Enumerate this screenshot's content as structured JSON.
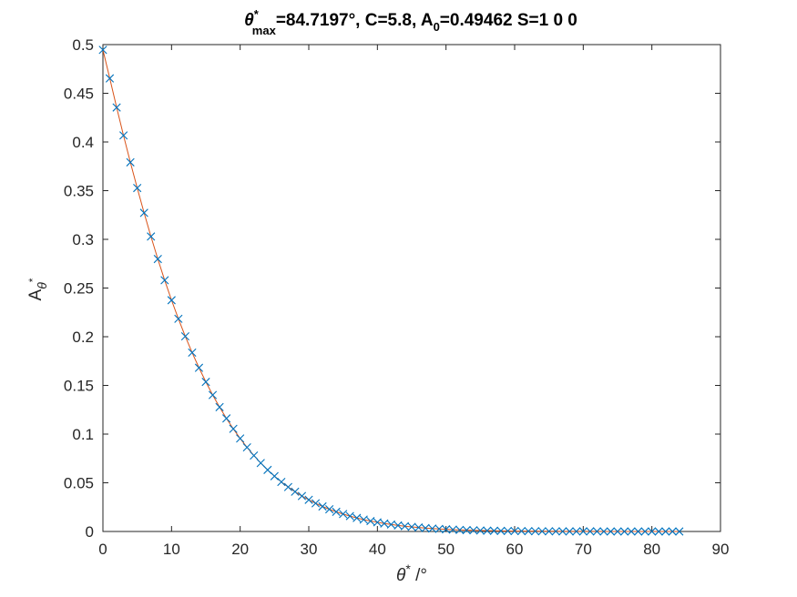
{
  "chart_data": {
    "type": "line",
    "title": {
      "theta": "θ",
      "star": "*",
      "sub_max": "max",
      "part1": "=84.7197°, C=5.8, A",
      "sub_0": "0",
      "part2": "=0.49462 S=1  0  0"
    },
    "xlabel": {
      "theta": "θ",
      "star": "*",
      "rest": " /°"
    },
    "ylabel": {
      "main": "A",
      "sub": "θ",
      "sup": "*"
    },
    "xlim": [
      0,
      90
    ],
    "ylim": [
      0,
      0.5
    ],
    "xticks": [
      0,
      10,
      20,
      30,
      40,
      50,
      60,
      70,
      80,
      90
    ],
    "yticks": [
      0,
      0.05,
      0.1,
      0.15,
      0.2,
      0.25,
      0.3,
      0.35,
      0.4,
      0.45,
      0.5
    ],
    "xtick_labels": [
      "0",
      "10",
      "20",
      "30",
      "40",
      "50",
      "60",
      "70",
      "80",
      "90"
    ],
    "ytick_labels": [
      "0",
      "0.05",
      "0.1",
      "0.15",
      "0.2",
      "0.25",
      "0.3",
      "0.35",
      "0.4",
      "0.45",
      "0.5"
    ],
    "grid": false,
    "series": [
      {
        "style": "markers",
        "marker": "x",
        "color": "#0072BD",
        "x": [
          0,
          1,
          2,
          3,
          4,
          5,
          6,
          7,
          8,
          9,
          10,
          11,
          12,
          13,
          14,
          15,
          16,
          17,
          18,
          19,
          20,
          21,
          22,
          23,
          24,
          25,
          26,
          27,
          28,
          29,
          30,
          31,
          32,
          33,
          34,
          35,
          36,
          37,
          38,
          39,
          40,
          41,
          42,
          43,
          44,
          45,
          46,
          47,
          48,
          49,
          50,
          51,
          52,
          53,
          54,
          55,
          56,
          57,
          58,
          59,
          60,
          61,
          62,
          63,
          64,
          65,
          66,
          67,
          68,
          69,
          70,
          71,
          72,
          73,
          74,
          75,
          76,
          77,
          78,
          79,
          80,
          81,
          82,
          83,
          84
        ],
        "y": [
          0.4946,
          0.4653,
          0.4354,
          0.4067,
          0.3791,
          0.3527,
          0.3272,
          0.3029,
          0.2798,
          0.258,
          0.2375,
          0.2184,
          0.2004,
          0.1837,
          0.1681,
          0.1536,
          0.1401,
          0.1277,
          0.1161,
          0.1054,
          0.0955,
          0.0864,
          0.078,
          0.0703,
          0.0632,
          0.0568,
          0.0509,
          0.0456,
          0.0408,
          0.0364,
          0.0325,
          0.0289,
          0.0257,
          0.0228,
          0.0202,
          0.0179,
          0.0158,
          0.0139,
          0.0122,
          0.0107,
          0.0094,
          0.0082,
          0.0072,
          0.0062,
          0.0054,
          0.0047,
          0.0041,
          0.0035,
          0.003,
          0.0026,
          0.0022,
          0.0019,
          0.0016,
          0.0014,
          0.0012,
          0.001,
          0.0008,
          0.0007,
          0.0006,
          0.0005,
          0.0004,
          0.0004,
          0.0003,
          0.0003,
          0.0002,
          0.0002,
          0.0002,
          0.0001,
          0.0001,
          0.0001,
          0.0001,
          0.0001,
          0.0001,
          0.0,
          0.0,
          0.0,
          0.0,
          0.0,
          0.0,
          0.0,
          0.0,
          0.0,
          0.0,
          0.0,
          0.0
        ]
      },
      {
        "style": "line",
        "color": "#D95319",
        "x": [
          0,
          1,
          2,
          3,
          4,
          5,
          6,
          7,
          8,
          9,
          10,
          11,
          12,
          13,
          14,
          15,
          16,
          17,
          18,
          19,
          20,
          21,
          22,
          23,
          24,
          25,
          26,
          27,
          28,
          29,
          30,
          31,
          32,
          33,
          34,
          35,
          36,
          37,
          38,
          39,
          40,
          41,
          42,
          43,
          44,
          45,
          46,
          47,
          48,
          49,
          50,
          51,
          52,
          53,
          54,
          55,
          56,
          57,
          58,
          59,
          60,
          61,
          62,
          63,
          64,
          65,
          66,
          67,
          68,
          69,
          70,
          71,
          72,
          73,
          74,
          75,
          76,
          77,
          78,
          79,
          80,
          81,
          82,
          83,
          84
        ],
        "y": [
          0.4946,
          0.4653,
          0.4354,
          0.4067,
          0.3791,
          0.3527,
          0.3272,
          0.3029,
          0.2798,
          0.258,
          0.2375,
          0.2184,
          0.2004,
          0.1837,
          0.1681,
          0.1536,
          0.1401,
          0.1277,
          0.1161,
          0.1054,
          0.0955,
          0.0864,
          0.078,
          0.0703,
          0.0632,
          0.0568,
          0.0509,
          0.0456,
          0.0408,
          0.0364,
          0.0325,
          0.0289,
          0.0257,
          0.0228,
          0.0202,
          0.0179,
          0.0158,
          0.0139,
          0.0122,
          0.0107,
          0.0094,
          0.0082,
          0.0072,
          0.0062,
          0.0054,
          0.0047,
          0.0041,
          0.0035,
          0.003,
          0.0026,
          0.0022,
          0.0019,
          0.0016,
          0.0014,
          0.0012,
          0.001,
          0.0008,
          0.0007,
          0.0006,
          0.0005,
          0.0004,
          0.0004,
          0.0003,
          0.0003,
          0.0002,
          0.0002,
          0.0002,
          0.0001,
          0.0001,
          0.0001,
          0.0001,
          0.0001,
          0.0001,
          0.0,
          0.0,
          0.0,
          0.0,
          0.0,
          0.0,
          0.0,
          0.0,
          0.0,
          0.0,
          0.0,
          0.0
        ]
      }
    ]
  }
}
